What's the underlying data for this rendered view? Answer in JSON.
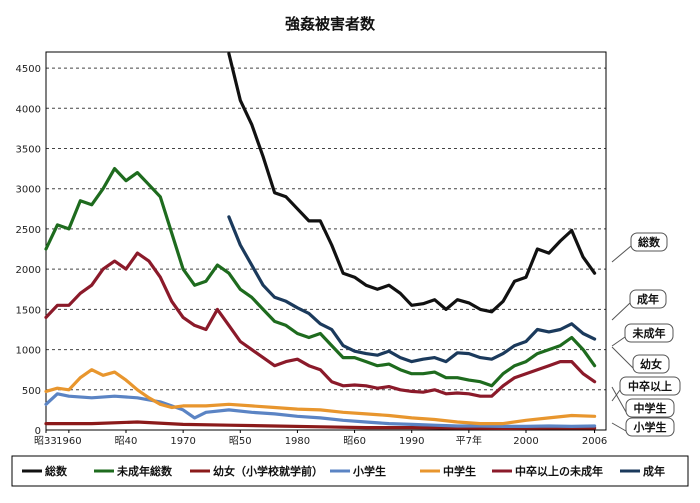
{
  "chart_data": {
    "type": "line",
    "title": "強姦被害者数",
    "ylim": [
      0,
      4700
    ],
    "yticks": [
      0,
      500,
      1000,
      1500,
      2000,
      2500,
      3000,
      3500,
      4000,
      4500
    ],
    "xlim": [
      1958,
      2007
    ],
    "xtick_labels": [
      {
        "x": 1958,
        "label": "昭33"
      },
      {
        "x": 1960,
        "label": "1960"
      },
      {
        "x": 1965,
        "label": "昭40"
      },
      {
        "x": 1970,
        "label": "1970"
      },
      {
        "x": 1975,
        "label": "昭50"
      },
      {
        "x": 1980,
        "label": "1980"
      },
      {
        "x": 1985,
        "label": "昭60"
      },
      {
        "x": 1990,
        "label": "1990"
      },
      {
        "x": 1995,
        "label": "平7年"
      },
      {
        "x": 2000,
        "label": "2000"
      },
      {
        "x": 2006,
        "label": "2006"
      }
    ],
    "grid": true,
    "legend_position": "bottom",
    "series": [
      {
        "name": "総数",
        "color": "#111111",
        "callout": "総数",
        "x": [
          1974,
          1975,
          1976,
          1977,
          1978,
          1979,
          1980,
          1981,
          1982,
          1983,
          1984,
          1985,
          1986,
          1987,
          1988,
          1989,
          1990,
          1991,
          1992,
          1993,
          1994,
          1995,
          1996,
          1997,
          1998,
          1999,
          2000,
          2001,
          2002,
          2003,
          2004,
          2005,
          2006
        ],
        "y": [
          4680,
          4100,
          3800,
          3400,
          2950,
          2900,
          2750,
          2600,
          2600,
          2300,
          1950,
          1900,
          1800,
          1750,
          1800,
          1700,
          1550,
          1570,
          1620,
          1500,
          1620,
          1580,
          1500,
          1470,
          1600,
          1850,
          1900,
          2250,
          2200,
          2350,
          2480,
          2150,
          1950
        ]
      },
      {
        "name": "未成年総数",
        "color": "#1e6b1e",
        "callout": "未成年",
        "x": [
          1958,
          1959,
          1960,
          1961,
          1962,
          1963,
          1964,
          1965,
          1966,
          1967,
          1968,
          1969,
          1970,
          1971,
          1972,
          1973,
          1974,
          1975,
          1976,
          1977,
          1978,
          1979,
          1980,
          1981,
          1982,
          1983,
          1984,
          1985,
          1986,
          1987,
          1988,
          1989,
          1990,
          1991,
          1992,
          1993,
          1994,
          1995,
          1996,
          1997,
          1998,
          1999,
          2000,
          2001,
          2002,
          2003,
          2004,
          2005,
          2006
        ],
        "y": [
          2250,
          2550,
          2500,
          2850,
          2800,
          3000,
          3250,
          3100,
          3200,
          3050,
          2900,
          2450,
          2000,
          1800,
          1850,
          2050,
          1950,
          1750,
          1650,
          1500,
          1350,
          1300,
          1200,
          1150,
          1200,
          1050,
          900,
          900,
          850,
          800,
          820,
          750,
          700,
          700,
          720,
          650,
          650,
          620,
          600,
          550,
          700,
          800,
          850,
          950,
          1000,
          1050,
          1150,
          1000,
          800
        ]
      },
      {
        "name": "幼女（小学校就学前）",
        "color": "#8b1a1a",
        "callout": "幼女",
        "x": [
          1958,
          1962,
          1966,
          1970,
          1974,
          1978,
          1982,
          1986,
          1990,
          1994,
          1998,
          2002,
          2006
        ],
        "y": [
          80,
          80,
          100,
          70,
          60,
          50,
          40,
          30,
          30,
          25,
          20,
          25,
          25
        ]
      },
      {
        "name": "小学生",
        "color": "#5b84c4",
        "callout": "小学生",
        "x": [
          1958,
          1959,
          1960,
          1962,
          1964,
          1966,
          1968,
          1970,
          1971,
          1972,
          1974,
          1976,
          1978,
          1980,
          1982,
          1984,
          1986,
          1988,
          1990,
          1992,
          1994,
          1996,
          1998,
          2000,
          2002,
          2004,
          2006
        ],
        "y": [
          320,
          450,
          420,
          400,
          420,
          400,
          350,
          250,
          150,
          220,
          250,
          220,
          200,
          170,
          150,
          120,
          100,
          80,
          70,
          60,
          50,
          50,
          45,
          45,
          50,
          45,
          50
        ]
      },
      {
        "name": "中学生",
        "color": "#e8962e",
        "callout": "中学生",
        "x": [
          1958,
          1959,
          1960,
          1961,
          1962,
          1963,
          1964,
          1965,
          1966,
          1967,
          1968,
          1969,
          1970,
          1972,
          1974,
          1976,
          1978,
          1980,
          1982,
          1984,
          1986,
          1988,
          1990,
          1992,
          1994,
          1996,
          1998,
          2000,
          2002,
          2004,
          2006
        ],
        "y": [
          480,
          520,
          500,
          650,
          750,
          680,
          720,
          620,
          500,
          400,
          320,
          280,
          300,
          300,
          320,
          300,
          280,
          260,
          250,
          220,
          200,
          180,
          150,
          130,
          100,
          80,
          80,
          120,
          150,
          180,
          170
        ]
      },
      {
        "name": "中卒以上の未成年",
        "color": "#8b1a2a",
        "callout": "中卒以上",
        "x": [
          1958,
          1959,
          1960,
          1961,
          1962,
          1963,
          1964,
          1965,
          1966,
          1967,
          1968,
          1969,
          1970,
          1971,
          1972,
          1973,
          1974,
          1975,
          1976,
          1977,
          1978,
          1979,
          1980,
          1981,
          1982,
          1983,
          1984,
          1985,
          1986,
          1987,
          1988,
          1989,
          1990,
          1991,
          1992,
          1993,
          1994,
          1995,
          1996,
          1997,
          1998,
          1999,
          2000,
          2001,
          2002,
          2003,
          2004,
          2005,
          2006
        ],
        "y": [
          1400,
          1550,
          1550,
          1700,
          1800,
          2000,
          2100,
          2000,
          2200,
          2100,
          1900,
          1600,
          1400,
          1300,
          1250,
          1500,
          1300,
          1100,
          1000,
          900,
          800,
          850,
          880,
          800,
          750,
          600,
          550,
          560,
          550,
          520,
          540,
          500,
          480,
          470,
          500,
          450,
          460,
          450,
          420,
          420,
          550,
          650,
          700,
          750,
          800,
          850,
          850,
          700,
          600
        ]
      },
      {
        "name": "成年",
        "color": "#1b3a5c",
        "callout": "成年",
        "x": [
          1974,
          1975,
          1976,
          1977,
          1978,
          1979,
          1980,
          1981,
          1982,
          1983,
          1984,
          1985,
          1986,
          1987,
          1988,
          1989,
          1990,
          1991,
          1992,
          1993,
          1994,
          1995,
          1996,
          1997,
          1998,
          1999,
          2000,
          2001,
          2002,
          2003,
          2004,
          2005,
          2006
        ],
        "y": [
          2650,
          2300,
          2050,
          1800,
          1650,
          1600,
          1520,
          1450,
          1320,
          1250,
          1050,
          980,
          950,
          930,
          980,
          900,
          850,
          880,
          900,
          850,
          960,
          950,
          900,
          880,
          950,
          1050,
          1100,
          1250,
          1220,
          1250,
          1320,
          1200,
          1130
        ]
      }
    ]
  }
}
